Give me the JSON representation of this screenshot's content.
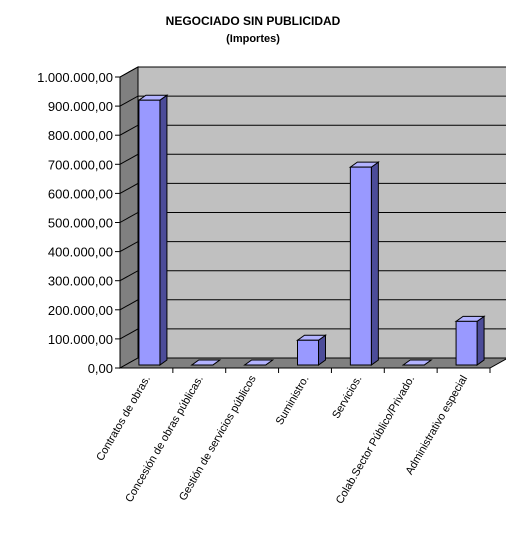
{
  "chart_data": {
    "type": "bar",
    "title": "NEGOCIADO SIN PUBLICIDAD",
    "subtitle": "(Importes)",
    "categories": [
      "Contratos de obras.",
      "Concesión de obras públicas.",
      "Gestión de servicios públicos",
      "Suministro.",
      "Servicios.",
      "Colab.Sector Público/Privado.",
      "Administrativo especial"
    ],
    "values": [
      910000,
      0,
      0,
      85000,
      680000,
      0,
      150000
    ],
    "ylim": [
      0,
      1000000
    ],
    "ytick_labels": [
      "0,00",
      "100.000,00",
      "200.000,00",
      "300.000,00",
      "400.000,00",
      "500.000,00",
      "600.000,00",
      "700.000,00",
      "800.000,00",
      "900.000,00",
      "1.000.000,00"
    ],
    "grid": true,
    "style": "3d",
    "colors": {
      "bar_front": "#9999ff",
      "bar_side": "#4c4c99",
      "bar_top": "#b3b3ff",
      "wall": "#c0c0c0",
      "floor": "#808080"
    }
  }
}
